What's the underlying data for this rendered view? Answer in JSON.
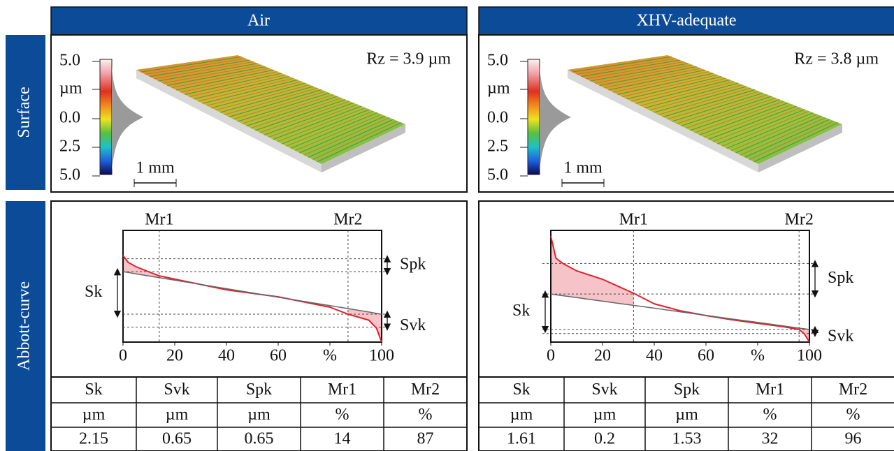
{
  "row_labels": [
    "Surface",
    "Abbott-curve"
  ],
  "panels": [
    {
      "title": "Air",
      "rz": "Rz = 3.9 µm",
      "colorbar_ticks": [
        "5.0",
        "µm",
        "0.0",
        "2.5",
        "5.0"
      ],
      "scale_bar": "1 mm",
      "table": {
        "header": [
          "Sk",
          "Svk",
          "Spk",
          "Mr1",
          "Mr2"
        ],
        "units": [
          "µm",
          "µm",
          "µm",
          "%",
          "%"
        ],
        "values": [
          2.15,
          0.65,
          0.65,
          14,
          87
        ]
      }
    },
    {
      "title": "XHV-adequate",
      "rz": "Rz = 3.8 µm",
      "colorbar_ticks": [
        "5.0",
        "µm",
        "0.0",
        "2.5",
        "5.0"
      ],
      "scale_bar": "1 mm",
      "table": {
        "header": [
          "Sk",
          "Svk",
          "Spk",
          "Mr1",
          "Mr2"
        ],
        "units": [
          "µm",
          "µm",
          "µm",
          "%",
          "%"
        ],
        "values": [
          1.61,
          0.2,
          1.53,
          32,
          96
        ]
      }
    }
  ],
  "chart_data": [
    {
      "type": "line",
      "x": [
        0,
        2,
        5,
        14,
        40,
        60,
        80,
        87,
        95,
        98,
        100
      ],
      "series": [
        {
          "color": "#e3202c",
          "values": [
            4.34,
            4.0,
            3.78,
            3.32,
            2.62,
            2.27,
            1.75,
            1.4,
            1.1,
            0.7,
            0
          ]
        },
        {
          "color": "#666666",
          "values": [
            3.53,
            3.49,
            3.42,
            3.23,
            2.68,
            2.25,
            1.83,
            1.68,
            1.51,
            1.44,
            1.4
          ]
        }
      ],
      "fill_color": "#f6c3c9",
      "xlim": [
        0,
        100
      ],
      "ylim": [
        0,
        5.6
      ],
      "xticks": [
        0,
        20,
        40,
        60,
        {
          "value": 80,
          "label": "%"
        },
        100
      ],
      "labels": {
        "mr1": "Mr1",
        "mr2": "Mr2",
        "spk": "Spk",
        "svk": "Svk",
        "sk": "Sk"
      }
    },
    {
      "type": "line",
      "x": [
        0,
        2,
        5,
        10,
        20,
        32,
        40,
        50,
        60,
        70,
        80,
        90,
        96,
        98,
        100
      ],
      "series": [
        {
          "color": "#e3202c",
          "values": [
            5.31,
            4.2,
            3.92,
            3.57,
            3.15,
            2.45,
            1.92,
            1.57,
            1.33,
            1.12,
            0.94,
            0.77,
            0.63,
            0.42,
            0
          ]
        },
        {
          "color": "#666666",
          "values": [
            2.41,
            2.37,
            2.32,
            2.23,
            2.05,
            1.84,
            1.7,
            1.52,
            1.34,
            1.16,
            0.99,
            0.81,
            0.7,
            0.67,
            0.63
          ]
        }
      ],
      "fill_color": "#f6c3c9",
      "xlim": [
        0,
        100
      ],
      "ylim": [
        0,
        5.6
      ],
      "xticks": [
        0,
        20,
        40,
        60,
        {
          "value": 80,
          "label": "%"
        },
        100
      ],
      "labels": {
        "mr1": "Mr1",
        "mr2": "Mr2",
        "spk": "Spk",
        "svk": "Svk",
        "sk": "Sk"
      }
    }
  ]
}
